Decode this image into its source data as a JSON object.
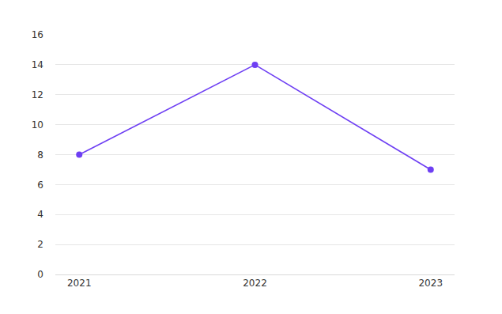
{
  "chart_data": {
    "type": "line",
    "categories": [
      "2021",
      "2022",
      "2023"
    ],
    "values": [
      8,
      14,
      7
    ],
    "color": "#6e3ff3",
    "marker": "circle",
    "line_style": "solid",
    "ylim": [
      0,
      16
    ],
    "yticks": [
      0,
      2,
      4,
      6,
      8,
      10,
      12,
      14,
      16
    ],
    "grid": true
  }
}
